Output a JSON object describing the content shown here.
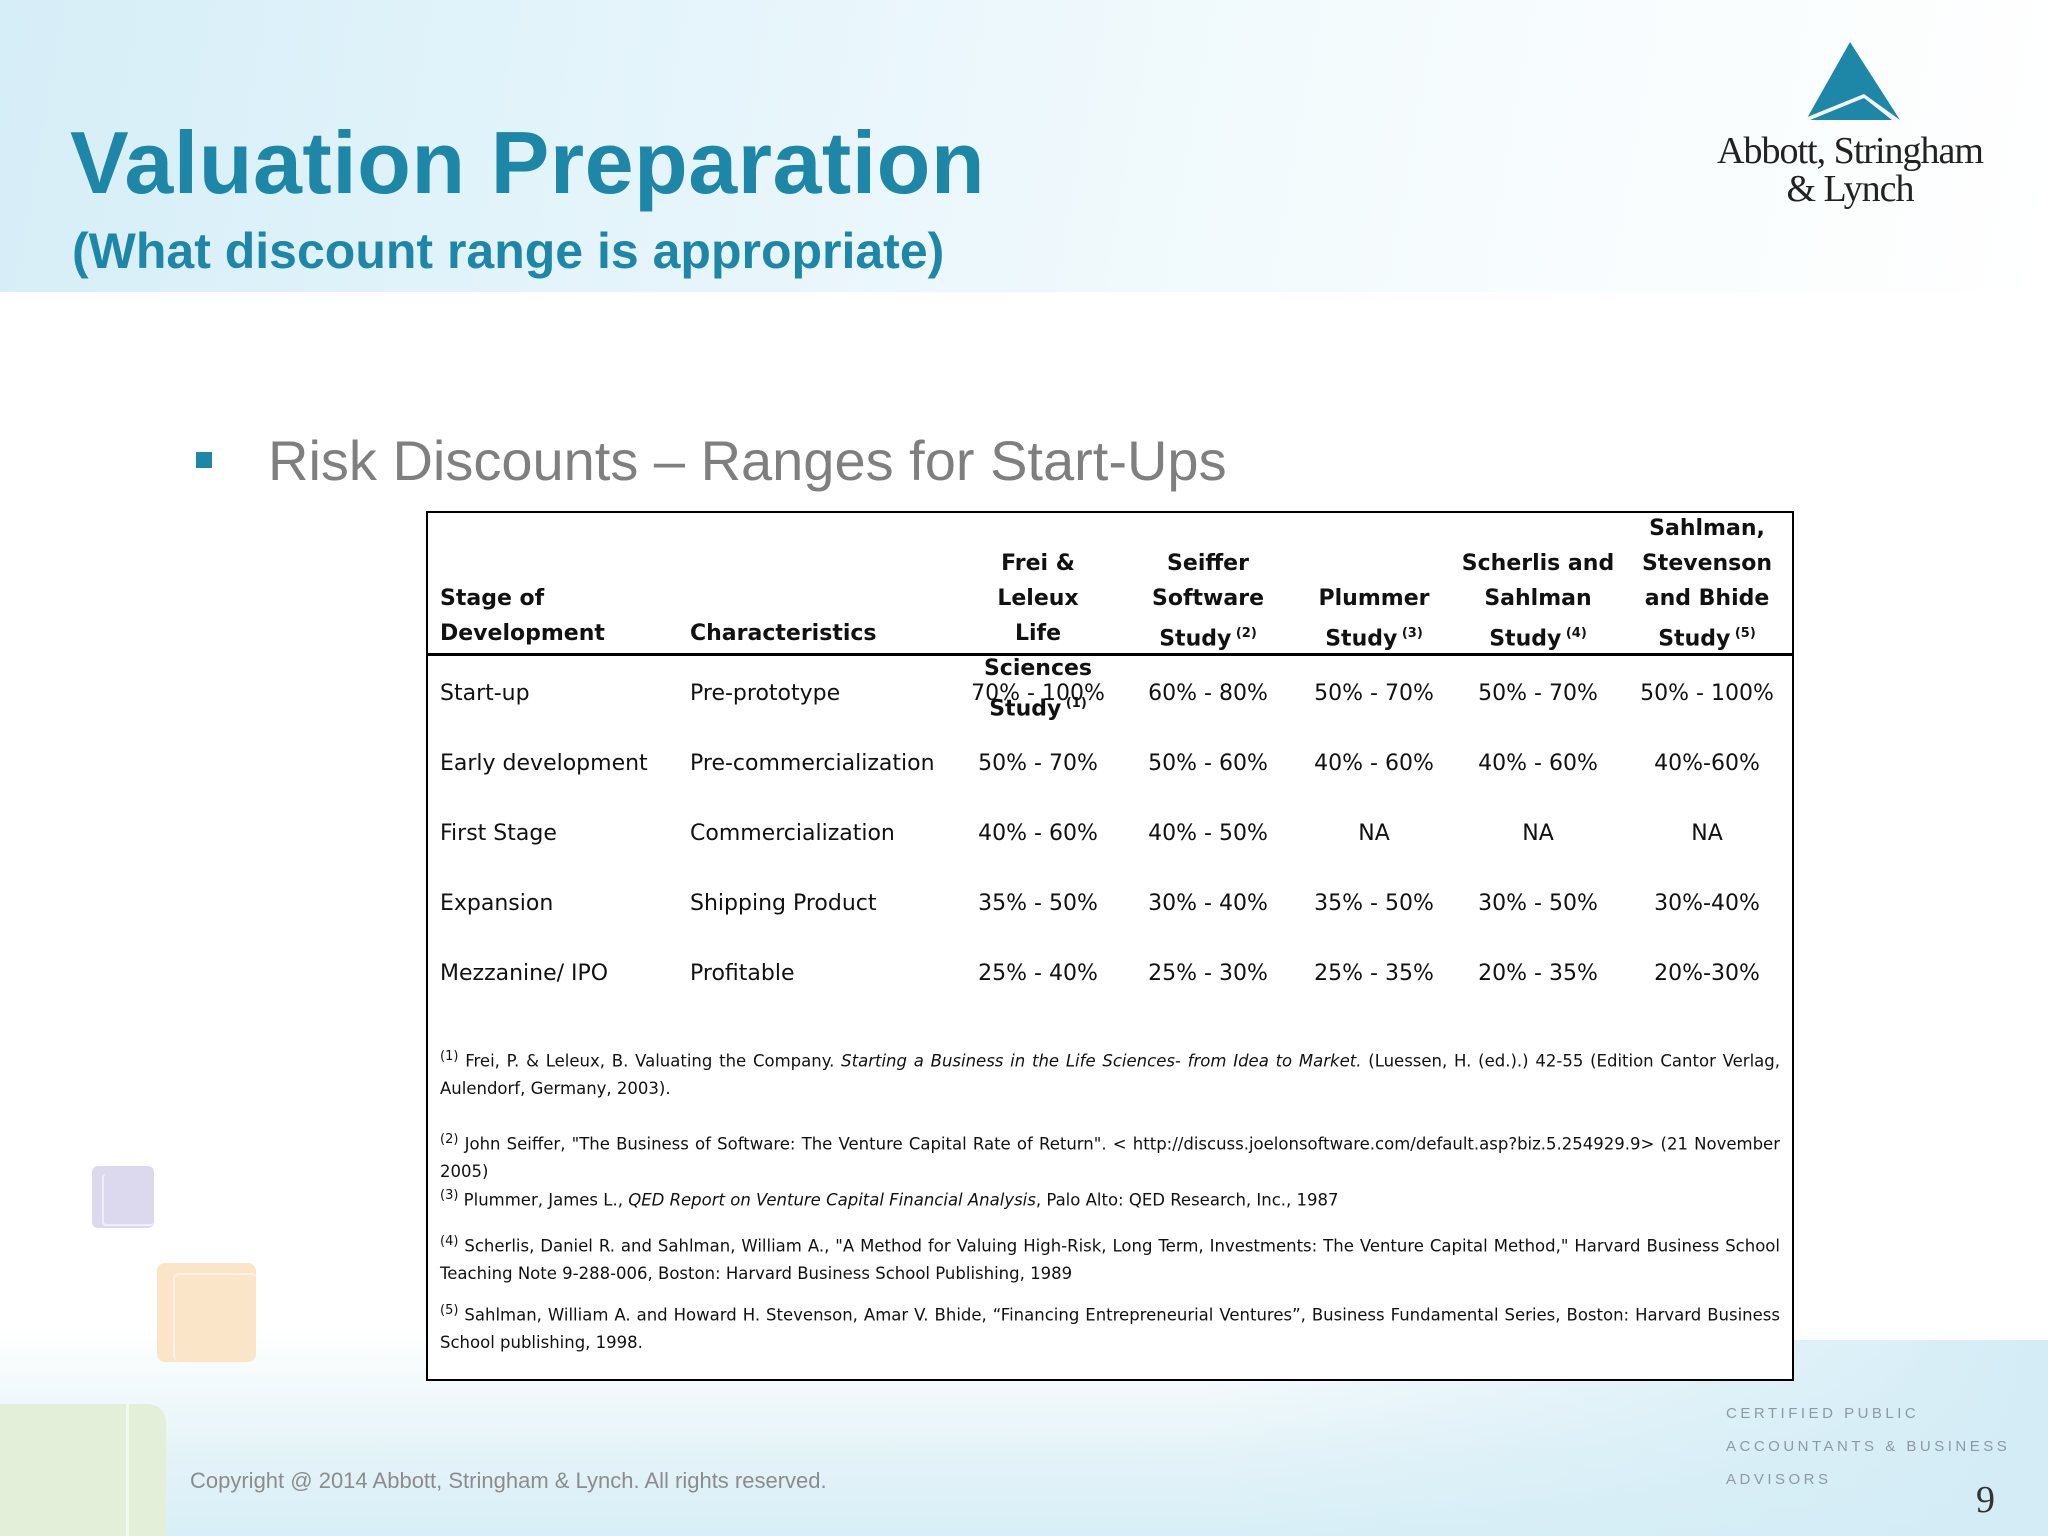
{
  "title": "Valuation Preparation",
  "subtitle": "(What discount range is appropriate)",
  "logo": {
    "line1": "Abbott, Stringham",
    "line2": "& Lynch",
    "mark_color": "#1e87a8"
  },
  "heading": "Risk Discounts – Ranges for Start-Ups",
  "table": {
    "headers": [
      {
        "lines": [
          "Stage of",
          "Development"
        ],
        "sup": ""
      },
      {
        "lines": [
          "Characteristics"
        ],
        "sup": ""
      },
      {
        "lines": [
          "Frei & Leleux",
          "Life Sciences",
          "Study"
        ],
        "sup": "(1)"
      },
      {
        "lines": [
          "Seiffer",
          "Software",
          "Study"
        ],
        "sup": "(2)"
      },
      {
        "lines": [
          "Plummer",
          "Study"
        ],
        "sup": "(3)"
      },
      {
        "lines": [
          "Scherlis and",
          "Sahlman",
          "Study"
        ],
        "sup": "(4)"
      },
      {
        "lines": [
          "Sahlman,",
          "Stevenson",
          "and Bhide",
          "Study"
        ],
        "sup": "(5)"
      }
    ],
    "rows": [
      [
        "Start-up",
        "Pre-prototype",
        "70% - 100%",
        "60% - 80%",
        "50% - 70%",
        "50% - 70%",
        "50% - 100%"
      ],
      [
        "Early development",
        "Pre-commercialization",
        "50% - 70%",
        "50% - 60%",
        "40% - 60%",
        "40% - 60%",
        "40%-60%"
      ],
      [
        "First Stage",
        "Commercialization",
        "40% - 60%",
        "40% - 50%",
        "NA",
        "NA",
        "NA"
      ],
      [
        "Expansion",
        "Shipping Product",
        "35% - 50%",
        "30% - 40%",
        "35% - 50%",
        "30% - 50%",
        "30%-40%"
      ],
      [
        "Mezzanine/ IPO",
        "Profitable",
        "25% - 40%",
        "25% - 30%",
        "25% - 35%",
        "20% - 35%",
        "20%-30%"
      ]
    ],
    "footnotes": [
      {
        "sup": "(1)",
        "parts": [
          {
            "t": " Frei, P. & Leleux, B.  Valuating the Company.  ",
            "i": false
          },
          {
            "t": "Starting a Business in the Life Sciences- from Idea to Market.",
            "i": true
          },
          {
            "t": " (Luessen, H. (ed.).) 42-55 (Edition Cantor Verlag, Aulendorf, Germany, 2003).",
            "i": false
          }
        ]
      },
      {
        "sup": "(2)",
        "parts": [
          {
            "t": " John Seiffer, \"The Business of Software: The Venture Capital Rate of Return\". < http://discuss.joelonsoftware.com/default.asp?biz.5.254929.9> (21 November 2005)",
            "i": false
          }
        ]
      },
      {
        "sup": "(3)",
        "parts": [
          {
            "t": " Plummer, James L., ",
            "i": false
          },
          {
            "t": "QED Report on Venture Capital Financial Analysis",
            "i": true
          },
          {
            "t": ", Palo Alto: QED Research, Inc., 1987",
            "i": false
          }
        ]
      },
      {
        "sup": "(4)",
        "parts": [
          {
            "t": " Scherlis, Daniel R. and Sahlman, William A., \"A Method for Valuing High-Risk, Long Term, Investments: The Venture Capital Method,\" Harvard Business School Teaching Note 9-288-006, Boston: Harvard Business School Publishing, 1989",
            "i": false
          }
        ]
      },
      {
        "sup": "(5)",
        "parts": [
          {
            "t": " Sahlman, William A. and Howard H. Stevenson, Amar V. Bhide, “Financing Entrepreneurial Ventures”, Business Fundamental Series, Boston: Harvard Business School publishing, 1998.",
            "i": false
          }
        ]
      }
    ]
  },
  "footer": {
    "copyright": "Copyright @ 2014 Abbott, Stringham & Lynch. All rights reserved.",
    "tagline": [
      "CERTIFIED PUBLIC",
      "ACCOUNTANTS & BUSINESS",
      "ADVISORS"
    ],
    "page_number": "9"
  }
}
